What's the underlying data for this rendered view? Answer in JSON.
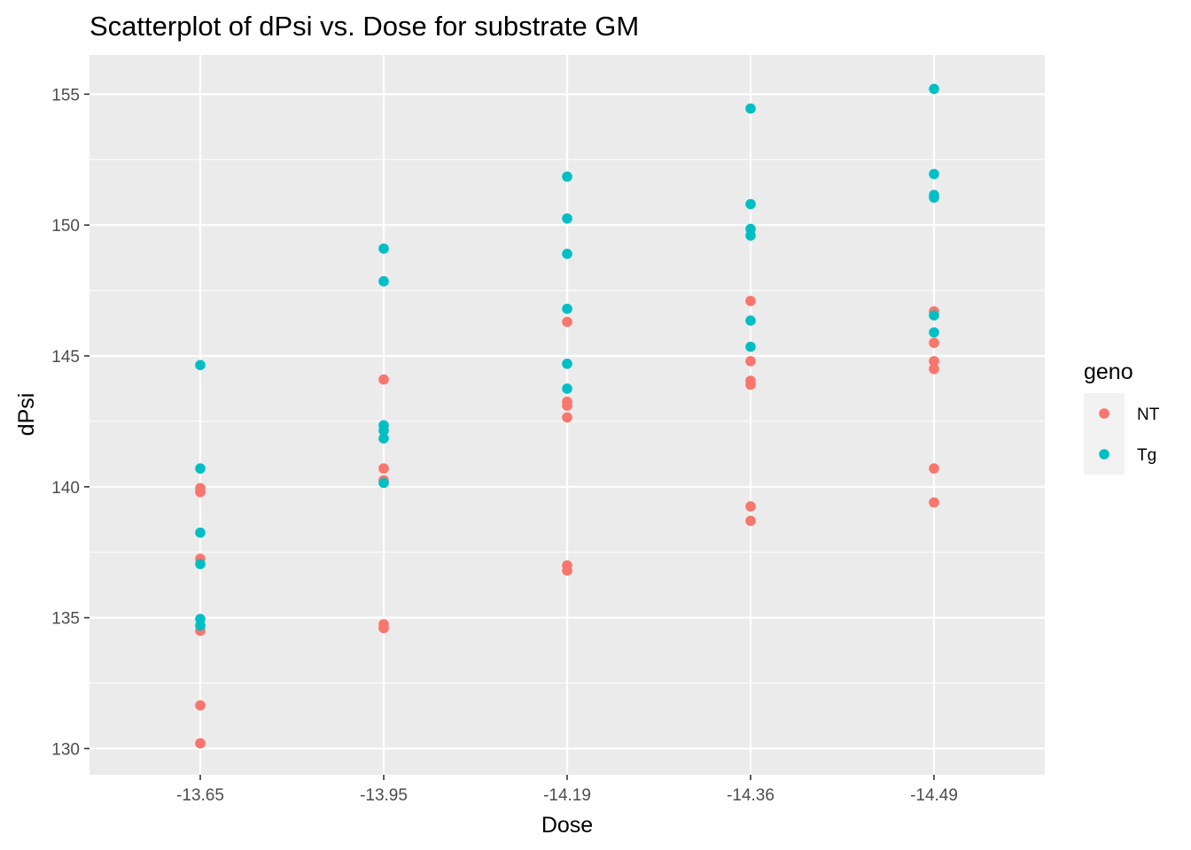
{
  "chart_data": {
    "type": "scatter",
    "title": "Scatterplot of dPsi vs. Dose for substrate GM",
    "xlabel": "Dose",
    "ylabel": "dPsi",
    "x_categories": [
      "-13.65",
      "-13.95",
      "-14.19",
      "-14.36",
      "-14.49"
    ],
    "ylim": [
      129,
      156.5
    ],
    "y_ticks": [
      130,
      135,
      140,
      145,
      150,
      155
    ],
    "grid": true,
    "legend": {
      "title": "geno",
      "position": "right"
    },
    "series": [
      {
        "name": "NT",
        "color": "#F8766D",
        "points": [
          {
            "x": "-13.65",
            "y": 139.95
          },
          {
            "x": "-13.65",
            "y": 139.8
          },
          {
            "x": "-13.65",
            "y": 137.25
          },
          {
            "x": "-13.65",
            "y": 134.5
          },
          {
            "x": "-13.65",
            "y": 131.65
          },
          {
            "x": "-13.65",
            "y": 130.2
          },
          {
            "x": "-13.95",
            "y": 144.1
          },
          {
            "x": "-13.95",
            "y": 140.7
          },
          {
            "x": "-13.95",
            "y": 140.25
          },
          {
            "x": "-13.95",
            "y": 134.75
          },
          {
            "x": "-13.95",
            "y": 134.6
          },
          {
            "x": "-14.19",
            "y": 146.3
          },
          {
            "x": "-14.19",
            "y": 143.25
          },
          {
            "x": "-14.19",
            "y": 143.1
          },
          {
            "x": "-14.19",
            "y": 142.65
          },
          {
            "x": "-14.19",
            "y": 137.0
          },
          {
            "x": "-14.19",
            "y": 136.8
          },
          {
            "x": "-14.36",
            "y": 147.1
          },
          {
            "x": "-14.36",
            "y": 144.8
          },
          {
            "x": "-14.36",
            "y": 144.05
          },
          {
            "x": "-14.36",
            "y": 143.9
          },
          {
            "x": "-14.36",
            "y": 139.25
          },
          {
            "x": "-14.36",
            "y": 138.7
          },
          {
            "x": "-14.49",
            "y": 146.7
          },
          {
            "x": "-14.49",
            "y": 145.5
          },
          {
            "x": "-14.49",
            "y": 144.8
          },
          {
            "x": "-14.49",
            "y": 144.5
          },
          {
            "x": "-14.49",
            "y": 140.7
          },
          {
            "x": "-14.49",
            "y": 139.4
          }
        ]
      },
      {
        "name": "Tg",
        "color": "#00BFC4",
        "points": [
          {
            "x": "-13.65",
            "y": 144.65
          },
          {
            "x": "-13.65",
            "y": 140.7
          },
          {
            "x": "-13.65",
            "y": 138.25
          },
          {
            "x": "-13.65",
            "y": 137.05
          },
          {
            "x": "-13.65",
            "y": 134.95
          },
          {
            "x": "-13.65",
            "y": 134.7
          },
          {
            "x": "-13.95",
            "y": 149.1
          },
          {
            "x": "-13.95",
            "y": 147.85
          },
          {
            "x": "-13.95",
            "y": 142.35
          },
          {
            "x": "-13.95",
            "y": 142.15
          },
          {
            "x": "-13.95",
            "y": 141.85
          },
          {
            "x": "-13.95",
            "y": 140.15
          },
          {
            "x": "-14.19",
            "y": 151.85
          },
          {
            "x": "-14.19",
            "y": 150.25
          },
          {
            "x": "-14.19",
            "y": 148.9
          },
          {
            "x": "-14.19",
            "y": 146.8
          },
          {
            "x": "-14.19",
            "y": 144.7
          },
          {
            "x": "-14.19",
            "y": 143.75
          },
          {
            "x": "-14.36",
            "y": 154.45
          },
          {
            "x": "-14.36",
            "y": 150.8
          },
          {
            "x": "-14.36",
            "y": 149.85
          },
          {
            "x": "-14.36",
            "y": 149.6
          },
          {
            "x": "-14.36",
            "y": 146.35
          },
          {
            "x": "-14.36",
            "y": 145.35
          },
          {
            "x": "-14.49",
            "y": 155.2
          },
          {
            "x": "-14.49",
            "y": 151.95
          },
          {
            "x": "-14.49",
            "y": 151.15
          },
          {
            "x": "-14.49",
            "y": 151.05
          },
          {
            "x": "-14.49",
            "y": 146.55
          },
          {
            "x": "-14.49",
            "y": 145.9
          }
        ]
      }
    ]
  }
}
